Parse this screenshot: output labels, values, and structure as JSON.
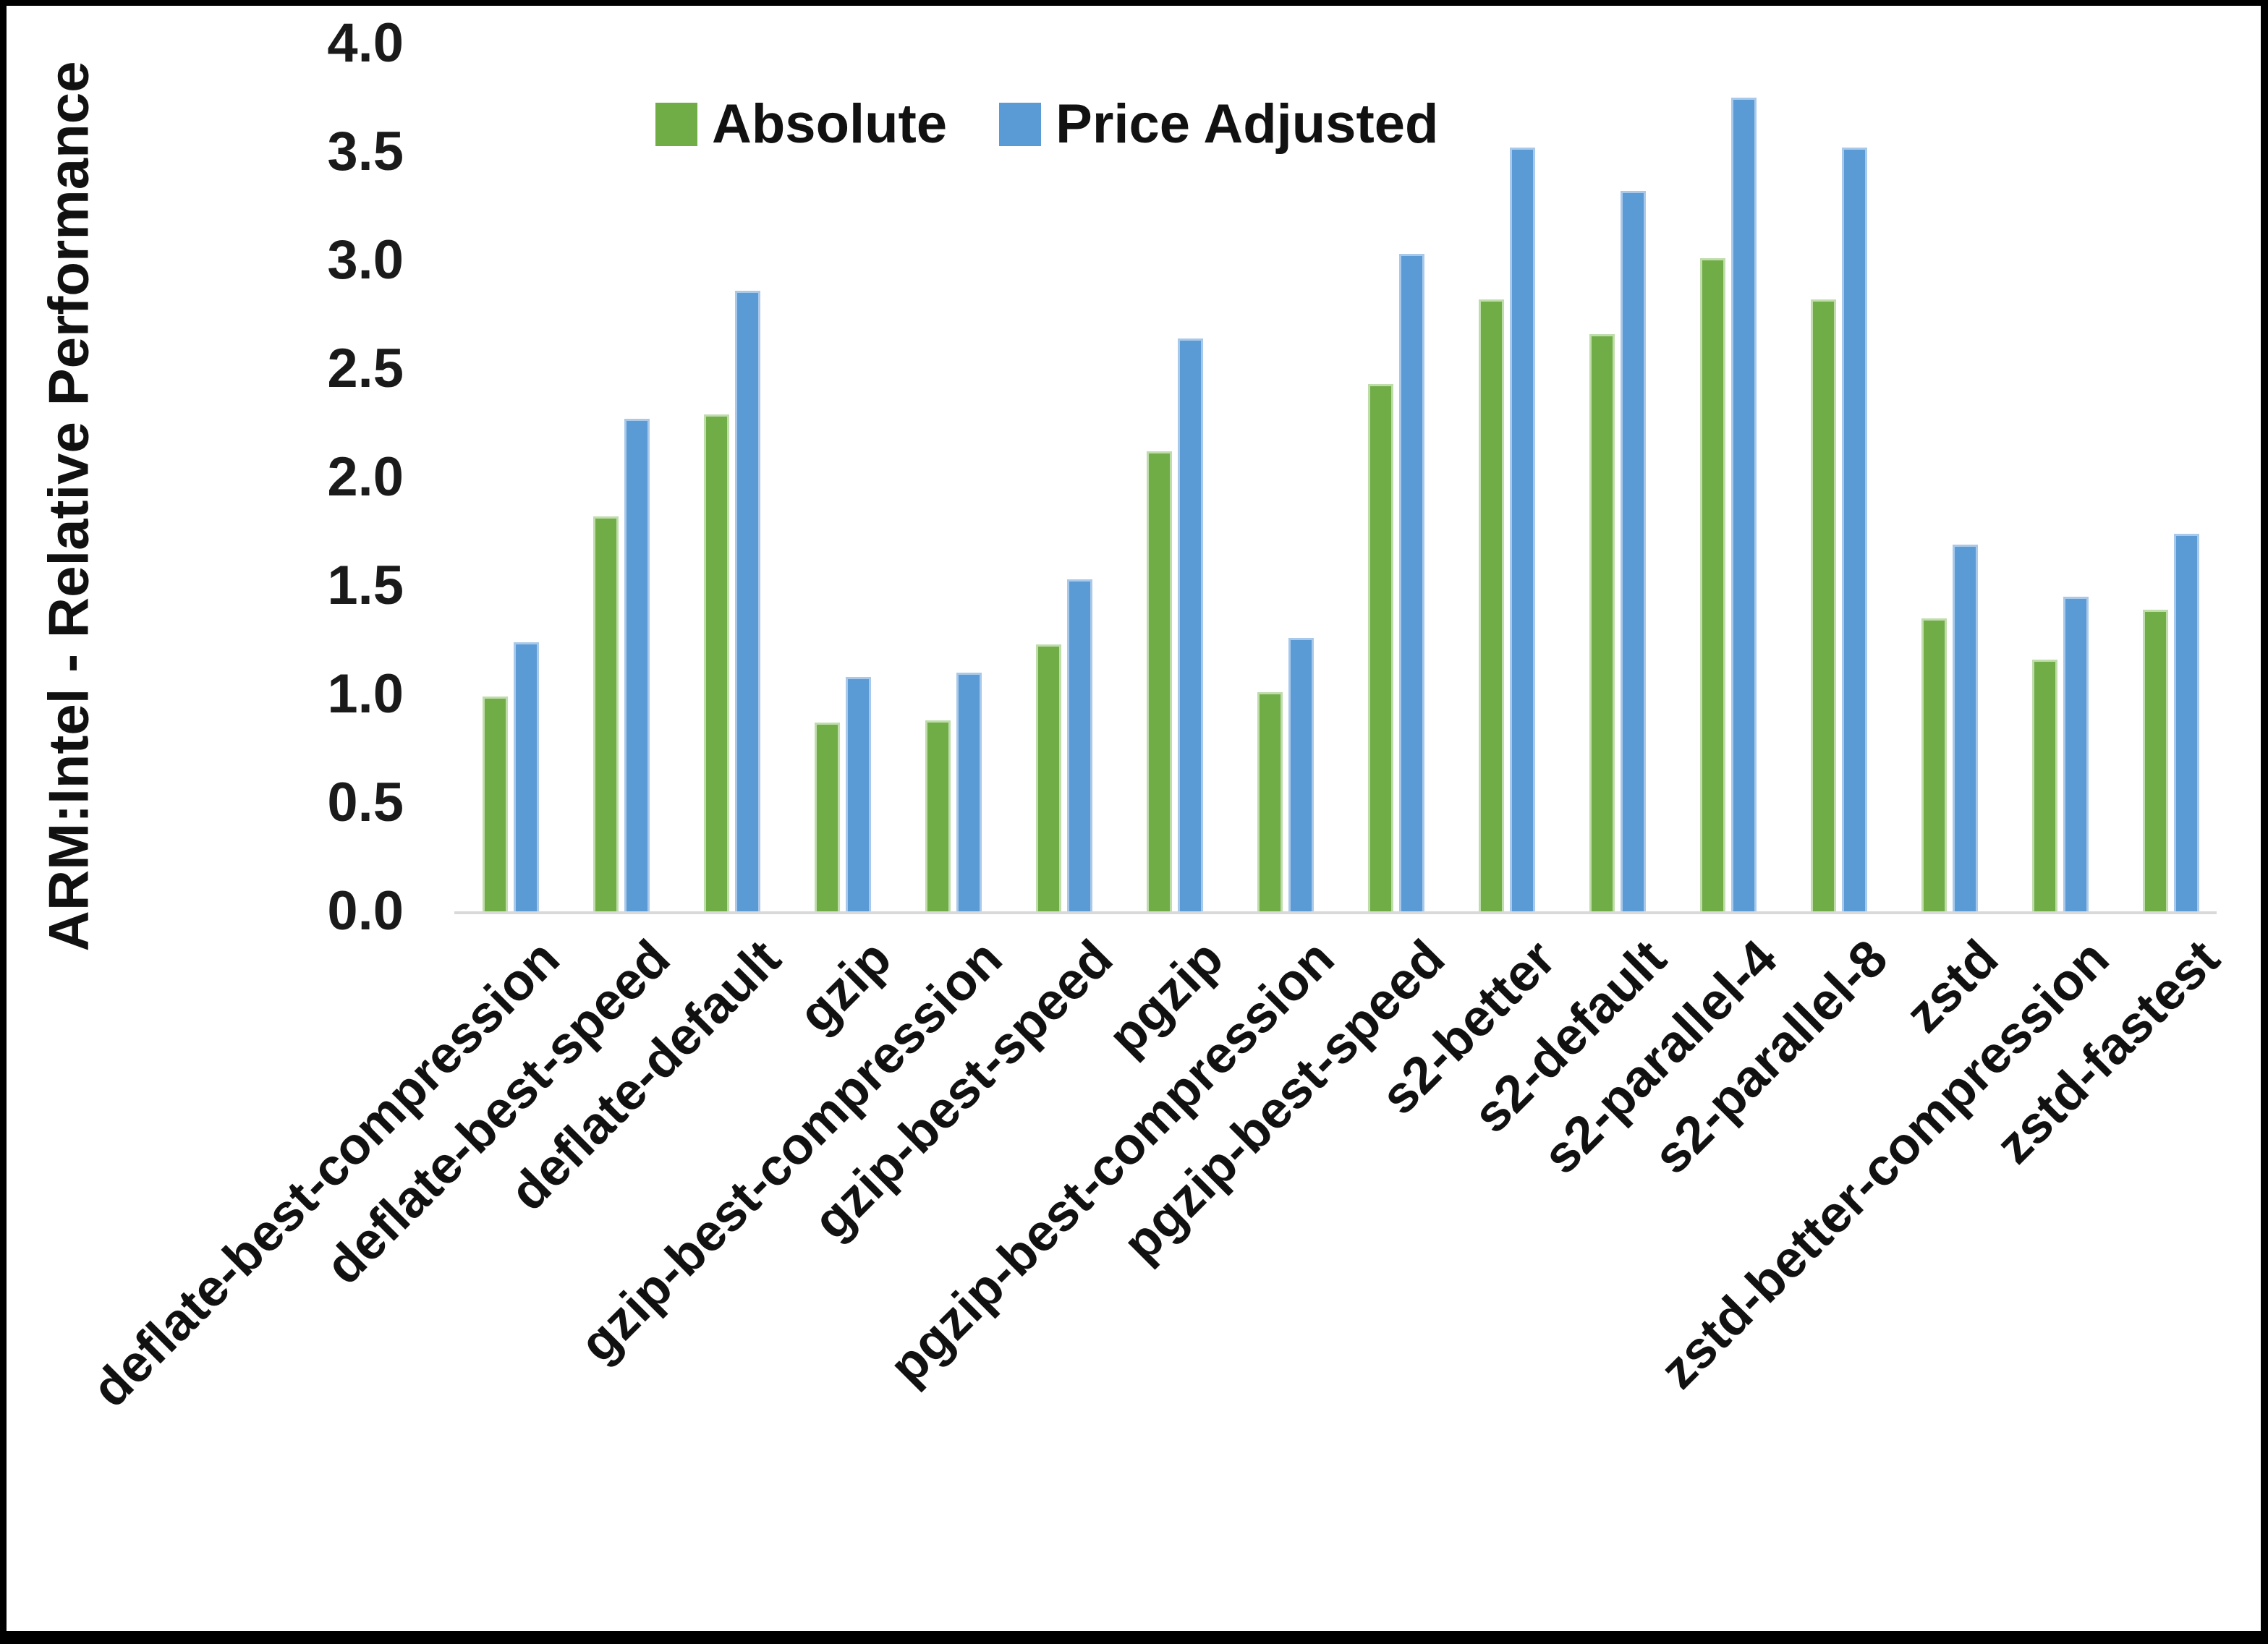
{
  "page": {
    "background": "#ffffff",
    "border_color": "#000000"
  },
  "legend": {
    "items": [
      {
        "label": "Absolute",
        "color": "#70AD47"
      },
      {
        "label": "Price Adjusted",
        "color": "#5B9BD5"
      }
    ]
  },
  "y_axis": {
    "title": "ARM:Intel - Relative Performance",
    "ticks": [
      "4.0",
      "3.5",
      "3.0",
      "2.5",
      "2.0",
      "1.5",
      "1.0",
      "0.5",
      "0.0"
    ],
    "axis_line_color": "#d9d9d9"
  },
  "chart_data": {
    "type": "bar",
    "title": "",
    "xlabel": "",
    "ylabel": "ARM:Intel - Relative Performance",
    "ylim": [
      0.0,
      4.0
    ],
    "ytick_step": 0.5,
    "grid": false,
    "legend_position": "top-center",
    "categories": [
      "deflate-best-compression",
      "deflate-best-speed",
      "deflate-default",
      "gzip",
      "gzip-best-compression",
      "gzip-best-speed",
      "pgzip",
      "pgzip-best-compression",
      "pgzip-best-speed",
      "s2-better",
      "s2-default",
      "s2-parallel-4",
      "s2-parallel-8",
      "zstd",
      "zstd-better-compression",
      "zstd-fastest"
    ],
    "series": [
      {
        "name": "Absolute",
        "color": "#70AD47",
        "values": [
          0.99,
          1.82,
          2.29,
          0.87,
          0.88,
          1.23,
          2.12,
          1.01,
          2.43,
          2.82,
          2.66,
          3.01,
          2.82,
          1.35,
          1.16,
          1.39
        ]
      },
      {
        "name": "Price Adjusted",
        "color": "#5B9BD5",
        "values": [
          1.24,
          2.27,
          2.86,
          1.08,
          1.1,
          1.53,
          2.64,
          1.26,
          3.03,
          3.52,
          3.32,
          3.75,
          3.52,
          1.69,
          1.45,
          1.74
        ]
      }
    ]
  }
}
